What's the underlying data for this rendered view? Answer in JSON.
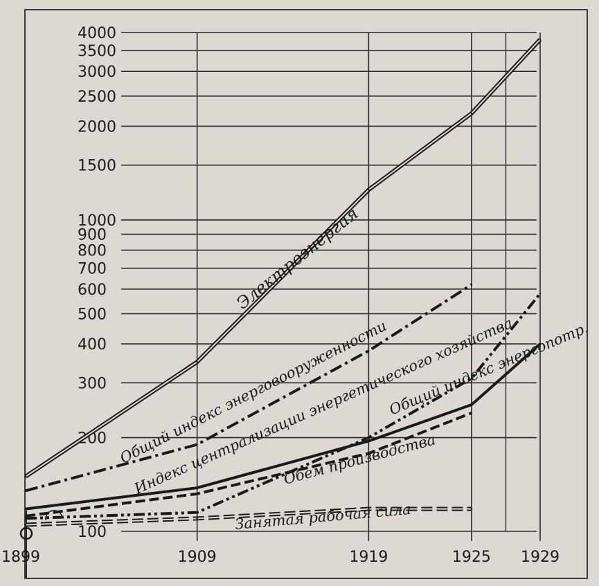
{
  "chart_data": {
    "type": "line",
    "y_scale": "log",
    "ylim": [
      100,
      4000
    ],
    "xlim": [
      1899,
      1929
    ],
    "x_ticks": [
      "1899",
      "1909",
      "1919",
      "1925",
      "1929"
    ],
    "y_ticks": [
      "100",
      "200",
      "300",
      "400",
      "500",
      "600",
      "700",
      "800",
      "900",
      "1000",
      "1500",
      "2000",
      "2500",
      "3000",
      "3500",
      "4000"
    ],
    "grid": true,
    "series": [
      {
        "name": "Электроэнергия",
        "x": [
          1899,
          1909,
          1919,
          1925,
          1929
        ],
        "y": [
          150,
          350,
          1250,
          2200,
          3800
        ],
        "style": "double",
        "color": "#1a1a1a"
      },
      {
        "name": "Общий индекс энерговооруженности",
        "x": [
          1899,
          1909,
          1919,
          1925
        ],
        "y": [
          135,
          190,
          380,
          620
        ],
        "style": "dashdot",
        "color": "#1a1a1a"
      },
      {
        "name": "Индекс централизации энергетического хозяйства",
        "x": [
          1899,
          1909,
          1919,
          1925,
          1929
        ],
        "y": [
          110,
          115,
          200,
          310,
          580
        ],
        "style": "dashdotdot",
        "color": "#1a1a1a"
      },
      {
        "name": "Общий индекс энергопотр.",
        "x": [
          1899,
          1909,
          1919,
          1925,
          1929
        ],
        "y": [
          118,
          138,
          195,
          255,
          400
        ],
        "style": "solid",
        "color": "#1a1a1a"
      },
      {
        "name": "Обем производства",
        "x": [
          1899,
          1909,
          1919,
          1925
        ],
        "y": [
          112,
          132,
          178,
          240
        ],
        "style": "dashed",
        "color": "#1a1a1a"
      },
      {
        "name": "Занятая рабочая сила",
        "x": [
          1899,
          1909,
          1919,
          1925
        ],
        "y": [
          105,
          110,
          118,
          118
        ],
        "style": "double-dashed",
        "color": "#1a1a1a"
      }
    ]
  }
}
